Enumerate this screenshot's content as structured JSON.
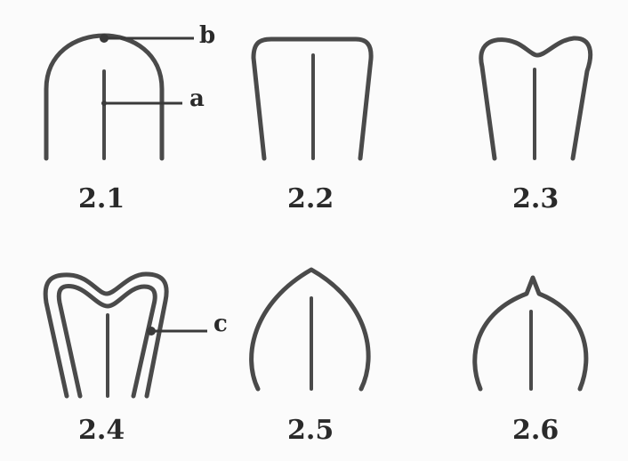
{
  "figures": [
    {
      "label": "2.1"
    },
    {
      "label": "2.2"
    },
    {
      "label": "2.3"
    },
    {
      "label": "2.4"
    },
    {
      "label": "2.5"
    },
    {
      "label": "2.6"
    }
  ],
  "annotations": {
    "a": "a",
    "b": "b",
    "c": "c"
  },
  "colors": {
    "stroke": "#4a4a4a",
    "background": "#fbfbfb"
  }
}
